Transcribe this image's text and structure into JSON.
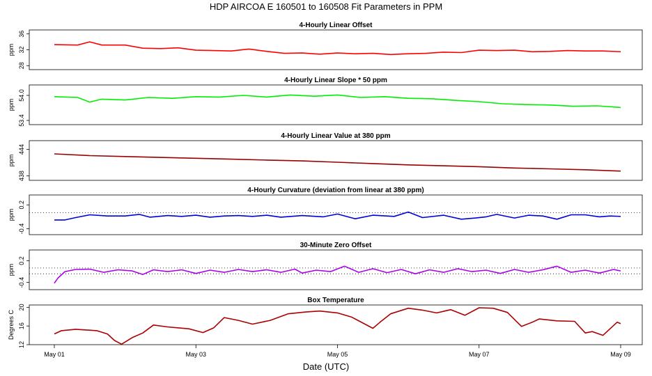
{
  "title": "HDP   AIRCOA E   160501 to 160508   Fit Parameters in PPM",
  "x_axis": {
    "label": "Date (UTC)",
    "ticks": [
      "May 01",
      "May 03",
      "May 05",
      "May 07",
      "May 09"
    ],
    "range_days": [
      0,
      8
    ]
  },
  "colors": {
    "offset": "#ff0000",
    "slope": "#00ee00",
    "value": "#990000",
    "curvature": "#0000dd",
    "zero": "#aa00ee",
    "temperature": "#aa0000"
  },
  "chart_data": [
    {
      "id": "offset",
      "type": "line",
      "title": "4-Hourly Linear Offset",
      "ylabel": "ppm",
      "yticks": [
        "36",
        "32",
        "28"
      ],
      "ylim": [
        27,
        37
      ],
      "x": [
        0,
        0.33,
        0.5,
        0.67,
        1.0,
        1.25,
        1.5,
        1.75,
        2.0,
        2.25,
        2.5,
        2.75,
        3.0,
        3.25,
        3.5,
        3.75,
        4.0,
        4.25,
        4.5,
        4.75,
        5.0,
        5.25,
        5.5,
        5.75,
        6.0,
        6.25,
        6.5,
        6.75,
        7.0,
        7.25,
        7.5,
        7.75,
        8.0
      ],
      "values": [
        33.3,
        33.2,
        34.0,
        33.2,
        33.2,
        32.4,
        32.3,
        32.5,
        31.9,
        31.8,
        31.7,
        32.2,
        31.6,
        31.1,
        31.2,
        30.9,
        31.2,
        31.0,
        31.1,
        30.8,
        31.0,
        31.1,
        31.4,
        31.3,
        31.9,
        31.8,
        31.9,
        31.5,
        31.6,
        31.8,
        31.7,
        31.7,
        31.5
      ]
    },
    {
      "id": "slope",
      "type": "line",
      "title": "4-Hourly Linear Slope * 50 ppm",
      "ylabel": "ppm",
      "yticks": [
        "54.0",
        "53.4"
      ],
      "ylim": [
        53.3,
        54.25
      ],
      "x": [
        0,
        0.33,
        0.5,
        0.67,
        1.0,
        1.33,
        1.67,
        2.0,
        2.33,
        2.67,
        3.0,
        3.33,
        3.67,
        4.0,
        4.33,
        4.67,
        5.0,
        5.33,
        5.67,
        6.0,
        6.33,
        6.67,
        7.0,
        7.33,
        7.67,
        8.0
      ],
      "values": [
        53.97,
        53.95,
        53.84,
        53.91,
        53.89,
        53.95,
        53.93,
        53.97,
        53.96,
        54.0,
        53.96,
        54.01,
        53.98,
        54.01,
        53.95,
        53.97,
        53.93,
        53.92,
        53.88,
        53.85,
        53.8,
        53.78,
        53.77,
        53.74,
        53.75,
        53.71
      ]
    },
    {
      "id": "value",
      "type": "line",
      "title": "4-Hourly Linear Value at 380 ppm",
      "ylabel": "ppm",
      "yticks": [
        "444",
        "438"
      ],
      "ylim": [
        437,
        446
      ],
      "x": [
        0,
        0.5,
        1.0,
        1.5,
        2.0,
        2.5,
        3.0,
        3.5,
        4.0,
        4.5,
        5.0,
        5.5,
        6.0,
        6.5,
        7.0,
        7.5,
        8.0
      ],
      "values": [
        443.0,
        442.6,
        442.4,
        442.2,
        442.0,
        441.8,
        441.6,
        441.4,
        441.1,
        440.8,
        440.5,
        440.3,
        440.1,
        439.8,
        439.6,
        439.4,
        439.1
      ]
    },
    {
      "id": "curvature",
      "type": "line",
      "title": "4-Hourly Curvature (deviation from linear at 380 ppm)",
      "ylabel": "ppm",
      "yticks": [
        "0.2",
        "-0.4"
      ],
      "ylim": [
        -0.55,
        0.45
      ],
      "reference_line": 0.0,
      "x": [
        0,
        0.15,
        0.3,
        0.5,
        0.75,
        1.0,
        1.2,
        1.35,
        1.6,
        1.8,
        2.0,
        2.2,
        2.4,
        2.6,
        2.8,
        3.0,
        3.2,
        3.5,
        3.8,
        4.0,
        4.25,
        4.5,
        4.8,
        5.0,
        5.2,
        5.5,
        5.75,
        5.95,
        6.1,
        6.25,
        6.5,
        6.7,
        6.9,
        7.1,
        7.3,
        7.5,
        7.7,
        7.85,
        8.0
      ],
      "values": [
        -0.18,
        -0.18,
        -0.12,
        -0.05,
        -0.08,
        -0.08,
        -0.04,
        -0.11,
        -0.07,
        -0.09,
        -0.06,
        -0.11,
        -0.08,
        -0.07,
        -0.09,
        -0.06,
        -0.11,
        -0.07,
        -0.1,
        -0.03,
        -0.15,
        -0.06,
        -0.09,
        0.02,
        -0.12,
        -0.06,
        -0.16,
        -0.13,
        -0.1,
        -0.04,
        -0.13,
        -0.06,
        -0.08,
        -0.16,
        -0.05,
        -0.05,
        -0.1,
        -0.08,
        -0.09
      ]
    },
    {
      "id": "zero",
      "type": "line",
      "title": "30-Minute Zero Offset",
      "ylabel": "ppm",
      "yticks": [
        "0.2",
        "-0.4"
      ],
      "ylim": [
        -0.6,
        0.5
      ],
      "reference_lines": [
        0.0,
        -0.16
      ],
      "x": [
        0,
        0.05,
        0.15,
        0.3,
        0.5,
        0.7,
        0.9,
        1.1,
        1.25,
        1.4,
        1.6,
        1.8,
        2.0,
        2.2,
        2.4,
        2.6,
        2.8,
        3.0,
        3.2,
        3.4,
        3.5,
        3.7,
        3.9,
        4.1,
        4.3,
        4.5,
        4.7,
        4.9,
        5.1,
        5.3,
        5.5,
        5.7,
        5.9,
        6.1,
        6.3,
        6.5,
        6.7,
        6.9,
        7.1,
        7.3,
        7.5,
        7.7,
        7.9,
        8.0
      ],
      "values": [
        -0.42,
        -0.28,
        -0.1,
        -0.04,
        -0.03,
        -0.12,
        -0.05,
        -0.08,
        -0.18,
        -0.05,
        -0.1,
        -0.05,
        -0.15,
        -0.06,
        -0.12,
        -0.04,
        -0.1,
        -0.05,
        -0.12,
        -0.03,
        -0.14,
        -0.06,
        -0.1,
        0.05,
        -0.12,
        -0.02,
        -0.13,
        -0.04,
        -0.16,
        -0.05,
        -0.12,
        -0.02,
        -0.1,
        -0.06,
        -0.15,
        -0.04,
        -0.12,
        -0.05,
        0.05,
        -0.12,
        -0.06,
        -0.14,
        -0.04,
        -0.08
      ]
    },
    {
      "id": "temperature",
      "type": "line",
      "title": "Box Temperature",
      "ylabel": "Degrees C",
      "yticks": [
        "20",
        "16",
        "12"
      ],
      "ylim": [
        12,
        20.5
      ],
      "x": [
        0,
        0.1,
        0.3,
        0.6,
        0.75,
        0.85,
        0.95,
        1.1,
        1.25,
        1.4,
        1.6,
        1.9,
        2.1,
        2.25,
        2.4,
        2.6,
        2.8,
        3.05,
        3.3,
        3.55,
        3.75,
        4.0,
        4.2,
        4.5,
        4.6,
        4.75,
        5.0,
        5.2,
        5.4,
        5.6,
        5.8,
        6.0,
        6.2,
        6.4,
        6.6,
        6.75,
        6.85,
        7.1,
        7.35,
        7.5,
        7.6,
        7.75,
        7.95,
        8.0
      ],
      "values": [
        14.3,
        15.0,
        15.3,
        15.0,
        14.3,
        12.9,
        12.1,
        13.5,
        14.5,
        16.2,
        15.8,
        15.4,
        14.6,
        15.6,
        17.8,
        17.2,
        16.4,
        17.2,
        18.6,
        19.0,
        19.2,
        18.8,
        17.9,
        15.5,
        16.8,
        18.6,
        19.8,
        19.4,
        18.8,
        19.5,
        18.3,
        19.9,
        19.8,
        18.9,
        15.9,
        16.8,
        17.5,
        17.1,
        17.0,
        14.5,
        14.8,
        14.0,
        16.8,
        16.5
      ]
    }
  ]
}
